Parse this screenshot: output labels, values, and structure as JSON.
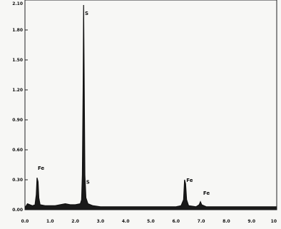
{
  "chart_data": {
    "type": "line",
    "title": "",
    "xlabel": "",
    "ylabel": "",
    "xlim": [
      0,
      10
    ],
    "ylim": [
      0,
      2.1
    ],
    "grid": false,
    "x_ticks": [
      "0.0",
      "1.0",
      "2.0",
      "3.0",
      "4.0",
      "5.0",
      "6.0",
      "7.0",
      "8.0",
      "9.0",
      "10"
    ],
    "y_ticks": [
      {
        "label": "0.00",
        "value": 0.0
      },
      {
        "label": "0.30",
        "value": 0.3
      },
      {
        "label": "0.60",
        "value": 0.6
      },
      {
        "label": "0.90",
        "value": 0.9
      },
      {
        "label": "1.20",
        "value": 1.2
      },
      {
        "label": "1.50",
        "value": 1.5
      },
      {
        "label": "1.80",
        "value": 1.8
      },
      {
        "label": "2.10",
        "value": 2.1
      }
    ],
    "series": [
      {
        "points": [
          [
            0.0,
            0.02
          ],
          [
            0.1,
            0.06
          ],
          [
            0.2,
            0.05
          ],
          [
            0.3,
            0.04
          ],
          [
            0.4,
            0.05
          ],
          [
            0.45,
            0.15
          ],
          [
            0.48,
            0.32
          ],
          [
            0.52,
            0.28
          ],
          [
            0.55,
            0.12
          ],
          [
            0.6,
            0.05
          ],
          [
            0.8,
            0.04
          ],
          [
            1.0,
            0.04
          ],
          [
            1.2,
            0.04
          ],
          [
            1.4,
            0.05
          ],
          [
            1.6,
            0.06
          ],
          [
            1.8,
            0.05
          ],
          [
            2.0,
            0.05
          ],
          [
            2.2,
            0.06
          ],
          [
            2.25,
            0.1
          ],
          [
            2.28,
            0.35
          ],
          [
            2.31,
            1.2
          ],
          [
            2.33,
            2.05
          ],
          [
            2.35,
            1.4
          ],
          [
            2.38,
            0.35
          ],
          [
            2.42,
            0.12
          ],
          [
            2.5,
            0.06
          ],
          [
            2.7,
            0.04
          ],
          [
            3.0,
            0.03
          ],
          [
            3.5,
            0.03
          ],
          [
            4.0,
            0.03
          ],
          [
            4.5,
            0.03
          ],
          [
            5.0,
            0.03
          ],
          [
            5.5,
            0.03
          ],
          [
            6.0,
            0.03
          ],
          [
            6.2,
            0.04
          ],
          [
            6.3,
            0.1
          ],
          [
            6.34,
            0.3
          ],
          [
            6.38,
            0.26
          ],
          [
            6.42,
            0.1
          ],
          [
            6.5,
            0.04
          ],
          [
            6.8,
            0.03
          ],
          [
            6.92,
            0.05
          ],
          [
            6.97,
            0.08
          ],
          [
            7.02,
            0.05
          ],
          [
            7.2,
            0.03
          ],
          [
            8.0,
            0.03
          ],
          [
            9.0,
            0.03
          ],
          [
            10.0,
            0.03
          ]
        ]
      }
    ],
    "annotations": [
      {
        "text": "Fe",
        "x": 0.48,
        "y": 0.4
      },
      {
        "text": "S",
        "x": 2.35,
        "y": 1.95
      },
      {
        "text": "S",
        "x": 2.4,
        "y": 0.26
      },
      {
        "text": "Fe",
        "x": 6.38,
        "y": 0.28
      },
      {
        "text": "Fe",
        "x": 7.05,
        "y": 0.15
      }
    ]
  }
}
